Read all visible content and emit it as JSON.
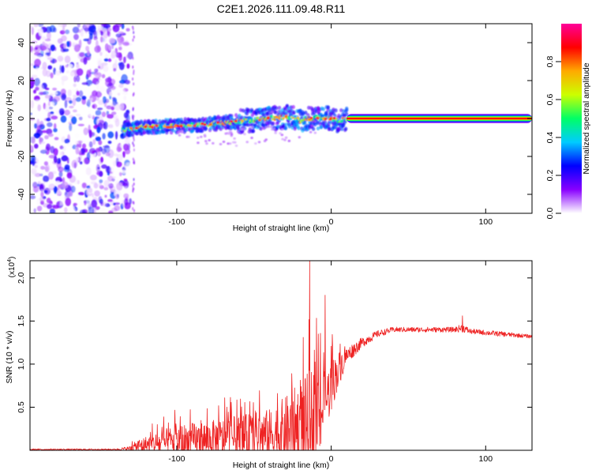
{
  "figure_title": "C2E1.2026.111.09.48.R11",
  "chart_data": [
    {
      "type": "heatmap",
      "title": "C2E1.2026.111.09.48.R11",
      "xlabel": "Height of straight line (km)",
      "ylabel": "Frequency (Hz)",
      "xlim": [
        -195,
        130
      ],
      "ylim": [
        -50,
        50
      ],
      "xticks": [
        -100,
        0,
        100
      ],
      "xtick_labels": [
        "-100",
        "0",
        "100"
      ],
      "yticks": [
        -40,
        -20,
        0,
        20,
        40
      ],
      "ytick_labels": [
        "-40",
        "-20",
        "0",
        "20",
        "40"
      ],
      "colorbar": {
        "label": "Normalized spectral amplitude",
        "range": [
          0,
          1
        ],
        "ticks": [
          0,
          0.2,
          0.4,
          0.6,
          0.8
        ],
        "tick_labels": [
          "0.0",
          "0.2",
          "0.4",
          "0.6",
          "0.8"
        ],
        "colormap": [
          "#ffffff",
          "#8800ff",
          "#0000ff",
          "#00ccff",
          "#00ff66",
          "#ccff00",
          "#ffaa00",
          "#ff0000",
          "#ff0099"
        ]
      },
      "features": {
        "noise_region_x": [
          -195,
          -130
        ],
        "signal_track": {
          "x": [
            -135,
            -120,
            -100,
            -80,
            -60,
            -40,
            -25,
            -20,
            -10,
            0,
            5,
            10,
            130
          ],
          "frequency": [
            -6,
            -4.5,
            -4,
            -3,
            -1.5,
            0,
            1,
            -1,
            0.5,
            0,
            -1,
            0,
            0
          ]
        },
        "steady_line_x": [
          10,
          130
        ],
        "steady_line_frequency": 0
      }
    },
    {
      "type": "line",
      "xlabel": "Height of straight line (km)",
      "ylabel": "SNR (10 * v/v)",
      "y_multiplier_label": "(x10",
      "y_multiplier_exponent": "4",
      "y_multiplier_close": ")",
      "xlim": [
        -195,
        130
      ],
      "ylim": [
        0,
        2.2
      ],
      "xticks": [
        -100,
        0,
        100
      ],
      "xtick_labels": [
        "-100",
        "0",
        "100"
      ],
      "yticks": [
        0.5,
        1.0,
        1.5,
        2.0
      ],
      "ytick_labels": [
        "0.5",
        "1.0",
        "1.5",
        "2.0"
      ],
      "series": [
        {
          "name": "SNR",
          "color": "#ee2222",
          "envelope": {
            "x": [
              -195,
              -140,
              -130,
              -125,
              -110,
              -100,
              -80,
              -60,
              -40,
              -30,
              -20,
              -15,
              -12,
              -8,
              -5,
              0,
              5,
              10,
              20,
              30,
              40,
              60,
              80,
              85,
              90,
              110,
              130
            ],
            "base": [
              0.01,
              0.01,
              0.02,
              0.05,
              0.08,
              0.1,
              0.12,
              0.15,
              0.18,
              0.22,
              0.25,
              0.3,
              0.35,
              0.4,
              0.5,
              0.75,
              0.95,
              1.1,
              1.25,
              1.35,
              1.4,
              1.4,
              1.4,
              1.42,
              1.38,
              1.35,
              1.32
            ],
            "amplitude": [
              0.008,
              0.008,
              0.03,
              0.08,
              0.15,
              0.2,
              0.22,
              0.25,
              0.3,
              0.4,
              0.55,
              0.6,
              0.65,
              0.55,
              0.4,
              0.3,
              0.2,
              0.1,
              0.06,
              0.04,
              0.03,
              0.03,
              0.03,
              0.05,
              0.03,
              0.03,
              0.02
            ]
          },
          "peaks": [
            {
              "x": -14,
              "y": 2.2
            },
            {
              "x": -4,
              "y": 1.8
            },
            {
              "x": 1,
              "y": 1.2
            },
            {
              "x": 85,
              "y": 1.56
            }
          ]
        }
      ]
    }
  ]
}
